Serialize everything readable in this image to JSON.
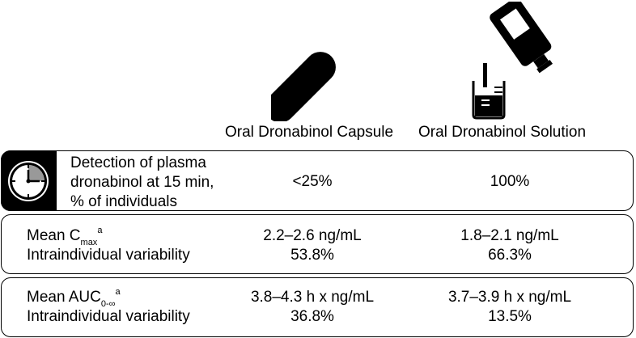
{
  "columns": {
    "capsule": "Oral Dronabinol Capsule",
    "solution": "Oral Dronabinol Solution"
  },
  "rows": [
    {
      "label_lines": [
        "Detection of plasma",
        "dronabinol at 15 min,",
        "% of individuals"
      ],
      "capsule": "<25%",
      "solution": "100%"
    },
    {
      "metric_prefix": "Mean C",
      "metric_sub": "max",
      "metric_sup": "a",
      "variability_label": "Intraindividual variability",
      "capsule_value": "2.2–2.6 ng/mL",
      "capsule_variability": "53.8%",
      "solution_value": "1.8–2.1 ng/mL",
      "solution_variability": "66.3%"
    },
    {
      "metric_prefix": "Mean AUC",
      "metric_sub": "0-∞",
      "metric_sup": "a",
      "variability_label": "Intraindividual variability",
      "capsule_value": "3.8–4.3 h x ng/mL",
      "capsule_variability": "36.8%",
      "solution_value": "3.7–3.9 h x ng/mL",
      "solution_variability": "13.5%"
    }
  ],
  "icons": {
    "capsule": "capsule-icon",
    "bottle": "bottle-pouring-icon",
    "clock": "clock-icon"
  }
}
